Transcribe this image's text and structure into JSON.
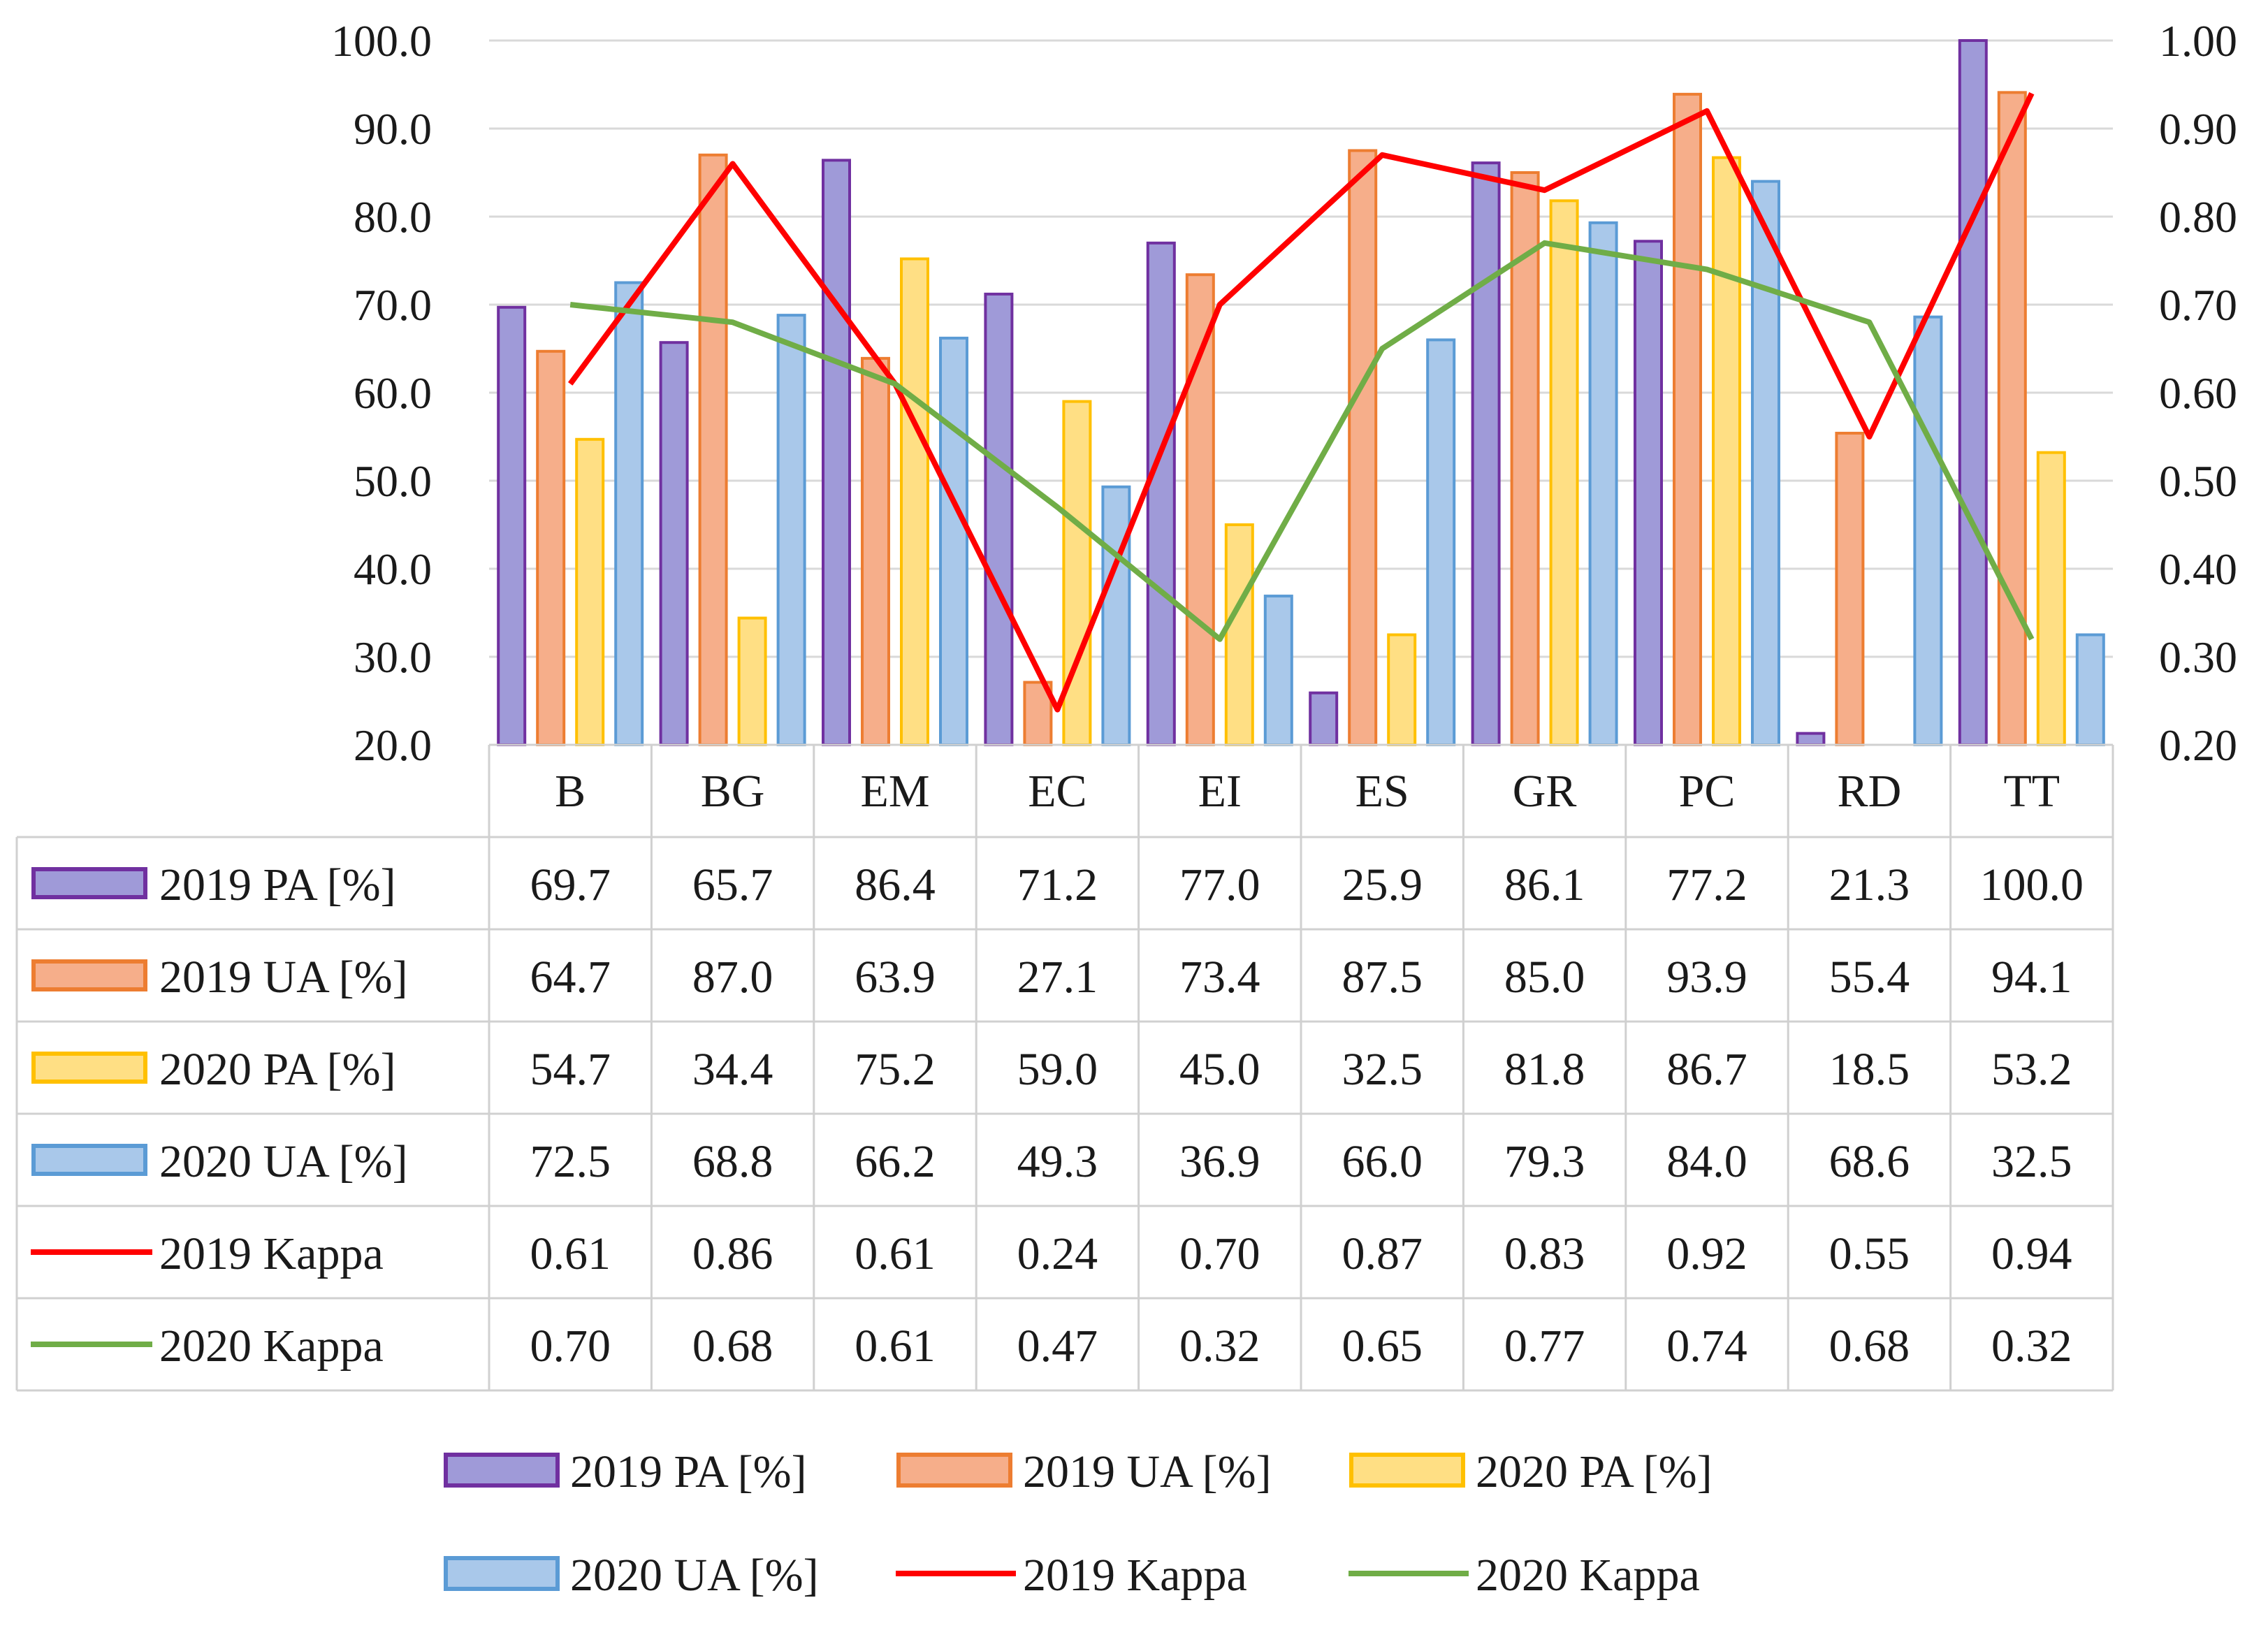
{
  "chart_data": {
    "type": "bar",
    "title": "",
    "categories": [
      "B",
      "BG",
      "EM",
      "EC",
      "EI",
      "ES",
      "GR",
      "PC",
      "RD",
      "TT"
    ],
    "ylim": [
      20,
      100
    ],
    "y2lim": [
      0.2,
      1.0
    ],
    "left_ticks": [
      "20.0",
      "30.0",
      "40.0",
      "50.0",
      "60.0",
      "70.0",
      "80.0",
      "90.0",
      "100.0"
    ],
    "right_ticks": [
      "0.20",
      "0.30",
      "0.40",
      "0.50",
      "0.60",
      "0.70",
      "0.80",
      "0.90",
      "1.00"
    ],
    "bar_series": [
      {
        "name": "2019 PA  [%]",
        "fill": "#9f9ad8",
        "stroke": "#7030a0",
        "values": [
          69.7,
          65.7,
          86.4,
          71.2,
          77.0,
          25.9,
          86.1,
          77.2,
          21.3,
          100.0
        ],
        "labels": [
          "69.7",
          "65.7",
          "86.4",
          "71.2",
          "77.0",
          "25.9",
          "86.1",
          "77.2",
          "21.3",
          "100.0"
        ]
      },
      {
        "name": "2019 UA  [%]",
        "fill": "#f6ae8a",
        "stroke": "#ed7d31",
        "values": [
          64.7,
          87.0,
          63.9,
          27.1,
          73.4,
          87.5,
          85.0,
          93.9,
          55.4,
          94.1
        ],
        "labels": [
          "64.7",
          "87.0",
          "63.9",
          "27.1",
          "73.4",
          "87.5",
          "85.0",
          "93.9",
          "55.4",
          "94.1"
        ]
      },
      {
        "name": "2020 PA  [%]",
        "fill": "#ffdf84",
        "stroke": "#ffc000",
        "values": [
          54.7,
          34.4,
          75.2,
          59.0,
          45.0,
          32.5,
          81.8,
          86.7,
          18.5,
          53.2
        ],
        "labels": [
          "54.7",
          "34.4",
          "75.2",
          "59.0",
          "45.0",
          "32.5",
          "81.8",
          "86.7",
          "18.5",
          "53.2"
        ]
      },
      {
        "name": "2020 UA  [%]",
        "fill": "#a9c8ea",
        "stroke": "#5b9bd5",
        "values": [
          72.5,
          68.8,
          66.2,
          49.3,
          36.9,
          66.0,
          79.3,
          84.0,
          68.6,
          32.5
        ],
        "labels": [
          "72.5",
          "68.8",
          "66.2",
          "49.3",
          "36.9",
          "66.0",
          "79.3",
          "84.0",
          "68.6",
          "32.5"
        ]
      }
    ],
    "line_series": [
      {
        "name": "2019 Kappa",
        "color": "#ff0000",
        "values": [
          0.61,
          0.86,
          0.61,
          0.24,
          0.7,
          0.87,
          0.83,
          0.92,
          0.55,
          0.94
        ],
        "labels": [
          "0.61",
          "0.86",
          "0.61",
          "0.24",
          "0.70",
          "0.87",
          "0.83",
          "0.92",
          "0.55",
          "0.94"
        ]
      },
      {
        "name": "2020 Kappa",
        "color": "#70ad47",
        "values": [
          0.7,
          0.68,
          0.61,
          0.47,
          0.32,
          0.65,
          0.77,
          0.74,
          0.68,
          0.32
        ],
        "labels": [
          "0.70",
          "0.68",
          "0.61",
          "0.47",
          "0.32",
          "0.65",
          "0.77",
          "0.74",
          "0.68",
          "0.32"
        ]
      }
    ],
    "legend_position": "bottom",
    "grid": true
  }
}
